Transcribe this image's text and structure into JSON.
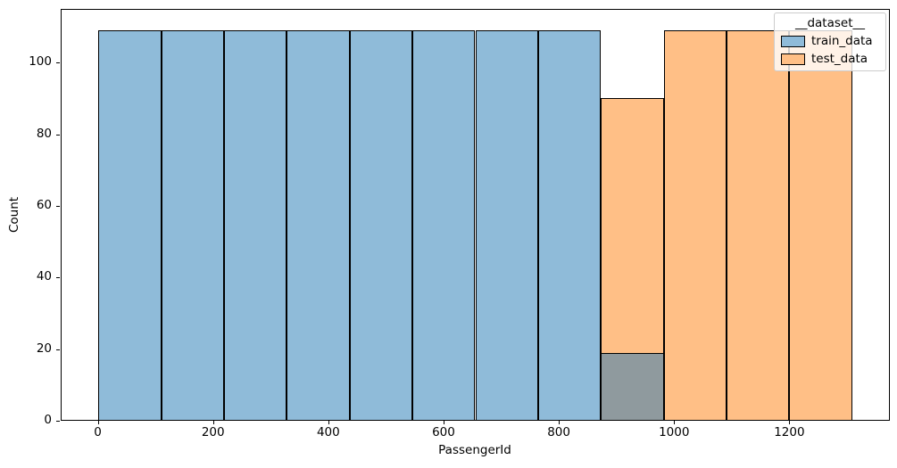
{
  "figure": {
    "background": "#ffffff"
  },
  "chart_data": {
    "type": "bar",
    "subtype": "histogram-layered",
    "title": "",
    "xlabel": "PassengerId",
    "ylabel": "Count",
    "x_ticks": [
      0,
      200,
      400,
      600,
      800,
      1000,
      1200
    ],
    "y_ticks": [
      0,
      20,
      40,
      60,
      80,
      100
    ],
    "xlim": [
      -64.4,
      1374.4
    ],
    "ylim": [
      0,
      115
    ],
    "grid": false,
    "bin_edges": [
      1,
      110,
      219,
      328,
      437,
      546,
      655,
      764,
      873,
      982,
      1091,
      1200,
      1309
    ],
    "series": [
      {
        "name": "train_data",
        "color": "#8fbbd9",
        "values": [
          109,
          109,
          109,
          109,
          109,
          109,
          109,
          109,
          19,
          0,
          0,
          0
        ]
      },
      {
        "name": "test_data",
        "color": "#ffbf86",
        "values": [
          0,
          0,
          0,
          0,
          0,
          0,
          0,
          0,
          90,
          109,
          109,
          109
        ]
      }
    ],
    "overlap_color": "#8f9a9e",
    "edge_color": "#000000",
    "legend": {
      "title": "__dataset__",
      "position": "upper right",
      "entries": [
        {
          "label": "train_data",
          "color": "#8fbbd9"
        },
        {
          "label": "test_data",
          "color": "#ffbf86"
        }
      ]
    }
  }
}
